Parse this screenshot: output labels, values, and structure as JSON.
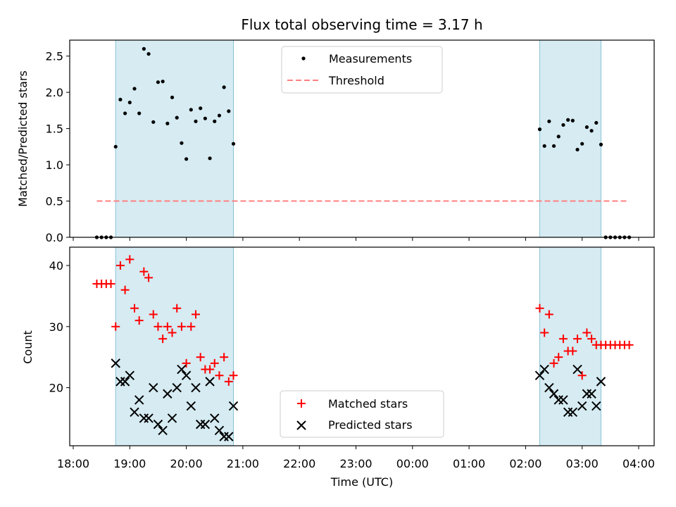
{
  "chart_data": [
    {
      "type": "scatter",
      "title": "Flux total observing time = 3.17 h",
      "ylabel": "Matched/Predicted stars",
      "xlabel": "",
      "ylim": [
        0,
        2.72
      ],
      "yticks": [
        "0.0",
        "0.5",
        "1.0",
        "1.5",
        "2.0",
        "2.5"
      ],
      "legend": {
        "placement": "top-center",
        "entries": [
          "Measurements",
          "Threshold"
        ]
      },
      "threshold": {
        "name": "Threshold",
        "value": 0.5,
        "color": "#ff8080",
        "x_start": "18:25",
        "x_end": "03:50"
      },
      "shaded_intervals": [
        [
          "18:45",
          "20:50"
        ],
        [
          "02:15",
          "03:20"
        ]
      ],
      "series": [
        {
          "name": "Measurements",
          "color": "#000000",
          "points": [
            [
              "18:25",
              0
            ],
            [
              "18:30",
              0
            ],
            [
              "18:35",
              0
            ],
            [
              "18:40",
              0
            ],
            [
              "18:45",
              1.25
            ],
            [
              "18:50",
              1.9
            ],
            [
              "18:55",
              1.71
            ],
            [
              "19:00",
              1.86
            ],
            [
              "19:05",
              2.05
            ],
            [
              "19:10",
              1.71
            ],
            [
              "19:15",
              2.6
            ],
            [
              "19:20",
              2.53
            ],
            [
              "19:25",
              1.59
            ],
            [
              "19:30",
              2.14
            ],
            [
              "19:35",
              2.15
            ],
            [
              "19:40",
              1.57
            ],
            [
              "19:45",
              1.93
            ],
            [
              "19:50",
              1.65
            ],
            [
              "19:55",
              1.3
            ],
            [
              "20:00",
              1.08
            ],
            [
              "20:05",
              1.76
            ],
            [
              "20:10",
              1.6
            ],
            [
              "20:15",
              1.78
            ],
            [
              "20:20",
              1.64
            ],
            [
              "20:25",
              1.09
            ],
            [
              "20:30",
              1.6
            ],
            [
              "20:35",
              1.68
            ],
            [
              "20:40",
              2.07
            ],
            [
              "20:45",
              1.74
            ],
            [
              "20:50",
              1.29
            ],
            [
              "02:15",
              1.49
            ],
            [
              "02:20",
              1.26
            ],
            [
              "02:25",
              1.6
            ],
            [
              "02:30",
              1.26
            ],
            [
              "02:35",
              1.39
            ],
            [
              "02:40",
              1.55
            ],
            [
              "02:45",
              1.62
            ],
            [
              "02:50",
              1.61
            ],
            [
              "02:55",
              1.21
            ],
            [
              "03:00",
              1.29
            ],
            [
              "03:05",
              1.52
            ],
            [
              "03:10",
              1.47
            ],
            [
              "03:15",
              1.58
            ],
            [
              "03:20",
              1.28
            ],
            [
              "03:25",
              0
            ],
            [
              "03:30",
              0
            ],
            [
              "03:35",
              0
            ],
            [
              "03:40",
              0
            ],
            [
              "03:45",
              0
            ],
            [
              "03:50",
              0
            ]
          ]
        }
      ]
    },
    {
      "type": "scatter",
      "title": "",
      "ylabel": "Count",
      "xlabel": "Time (UTC)",
      "ylim": [
        10.5,
        43
      ],
      "yticks": [
        "20",
        "30",
        "40"
      ],
      "xticks": [
        "18:00",
        "19:00",
        "20:00",
        "21:00",
        "22:00",
        "23:00",
        "00:00",
        "01:00",
        "02:00",
        "03:00",
        "04:00"
      ],
      "legend": {
        "placement": "bottom-center",
        "entries": [
          "Matched stars",
          "Predicted stars"
        ]
      },
      "shaded_intervals": [
        [
          "18:45",
          "20:50"
        ],
        [
          "02:15",
          "03:20"
        ]
      ],
      "series": [
        {
          "name": "Matched stars",
          "marker": "plus",
          "color": "#ff0000",
          "points": [
            [
              "18:25",
              37
            ],
            [
              "18:30",
              37
            ],
            [
              "18:35",
              37
            ],
            [
              "18:40",
              37
            ],
            [
              "18:45",
              30
            ],
            [
              "18:50",
              40
            ],
            [
              "18:55",
              36
            ],
            [
              "19:00",
              41
            ],
            [
              "19:05",
              33
            ],
            [
              "19:10",
              31
            ],
            [
              "19:15",
              39
            ],
            [
              "19:20",
              38
            ],
            [
              "19:25",
              32
            ],
            [
              "19:30",
              30
            ],
            [
              "19:35",
              28
            ],
            [
              "19:40",
              30
            ],
            [
              "19:45",
              29
            ],
            [
              "19:50",
              33
            ],
            [
              "19:55",
              30
            ],
            [
              "20:00",
              24
            ],
            [
              "20:05",
              30
            ],
            [
              "20:10",
              32
            ],
            [
              "20:15",
              25
            ],
            [
              "20:20",
              23
            ],
            [
              "20:25",
              23
            ],
            [
              "20:30",
              24
            ],
            [
              "20:35",
              22
            ],
            [
              "20:40",
              25
            ],
            [
              "20:45",
              21
            ],
            [
              "20:50",
              22
            ],
            [
              "02:15",
              33
            ],
            [
              "02:20",
              29
            ],
            [
              "02:25",
              32
            ],
            [
              "02:30",
              24
            ],
            [
              "02:35",
              25
            ],
            [
              "02:40",
              28
            ],
            [
              "02:45",
              26
            ],
            [
              "02:50",
              26
            ],
            [
              "02:55",
              28
            ],
            [
              "03:00",
              22
            ],
            [
              "03:05",
              29
            ],
            [
              "03:10",
              28
            ],
            [
              "03:15",
              27
            ],
            [
              "03:20",
              27
            ],
            [
              "03:25",
              27
            ],
            [
              "03:30",
              27
            ],
            [
              "03:35",
              27
            ],
            [
              "03:40",
              27
            ],
            [
              "03:45",
              27
            ],
            [
              "03:50",
              27
            ]
          ]
        },
        {
          "name": "Predicted stars",
          "marker": "x",
          "color": "#000000",
          "points": [
            [
              "18:45",
              24
            ],
            [
              "18:50",
              21
            ],
            [
              "18:55",
              21
            ],
            [
              "19:00",
              22
            ],
            [
              "19:05",
              16
            ],
            [
              "19:10",
              18
            ],
            [
              "19:15",
              15
            ],
            [
              "19:20",
              15
            ],
            [
              "19:25",
              20
            ],
            [
              "19:30",
              14
            ],
            [
              "19:35",
              13
            ],
            [
              "19:40",
              19
            ],
            [
              "19:45",
              15
            ],
            [
              "19:50",
              20
            ],
            [
              "19:55",
              23
            ],
            [
              "20:00",
              22
            ],
            [
              "20:05",
              17
            ],
            [
              "20:10",
              20
            ],
            [
              "20:15",
              14
            ],
            [
              "20:20",
              14
            ],
            [
              "20:25",
              21
            ],
            [
              "20:30",
              15
            ],
            [
              "20:35",
              13
            ],
            [
              "20:40",
              12
            ],
            [
              "20:45",
              12
            ],
            [
              "20:50",
              17
            ],
            [
              "02:15",
              22
            ],
            [
              "02:20",
              23
            ],
            [
              "02:25",
              20
            ],
            [
              "02:30",
              19
            ],
            [
              "02:35",
              18
            ],
            [
              "02:40",
              18
            ],
            [
              "02:45",
              16
            ],
            [
              "02:50",
              16
            ],
            [
              "02:55",
              23
            ],
            [
              "03:00",
              17
            ],
            [
              "03:05",
              19
            ],
            [
              "03:10",
              19
            ],
            [
              "03:15",
              17
            ],
            [
              "03:20",
              21
            ]
          ]
        }
      ]
    }
  ],
  "style": {
    "shade_color": "#add8e6",
    "shade_edge_color": "#87c4d6"
  }
}
